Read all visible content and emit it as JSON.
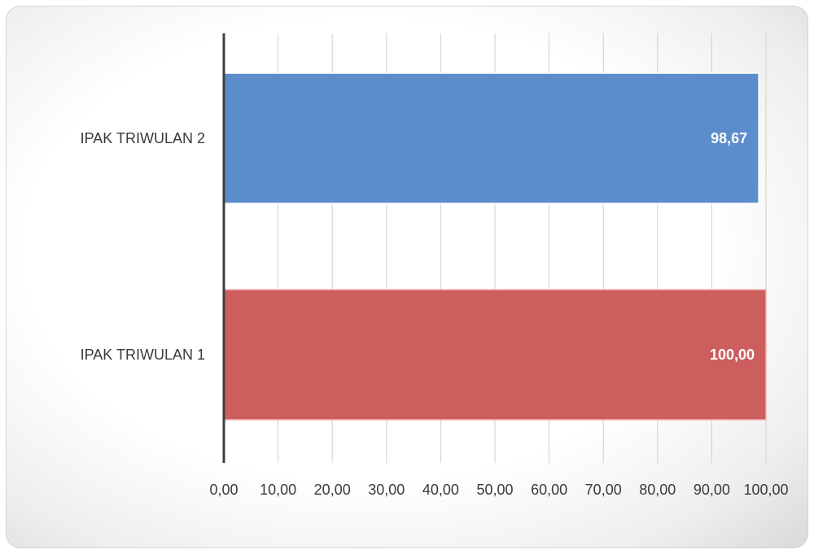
{
  "chart_data": {
    "type": "bar",
    "orientation": "horizontal",
    "categories": [
      "IPAK TRIWULAN 2",
      "IPAK TRIWULAN 1"
    ],
    "values": [
      98.67,
      100.0
    ],
    "data_labels": [
      "98,67",
      "100,00"
    ],
    "bar_colors": [
      "#5b8ccb",
      "#cc5e5e"
    ],
    "bar_edge_colors": [
      "#ffffff",
      "#f2b3b3"
    ],
    "xlim": [
      0,
      100
    ],
    "x_ticks": [
      0,
      10,
      20,
      30,
      40,
      50,
      60,
      70,
      80,
      90,
      100
    ],
    "x_tick_labels": [
      "0,00",
      "10,00",
      "20,00",
      "30,00",
      "40,00",
      "50,00",
      "60,00",
      "70,00",
      "80,00",
      "90,00",
      "100,00"
    ],
    "grid": true,
    "title": "",
    "xlabel": "",
    "ylabel": "",
    "legend": "none"
  }
}
